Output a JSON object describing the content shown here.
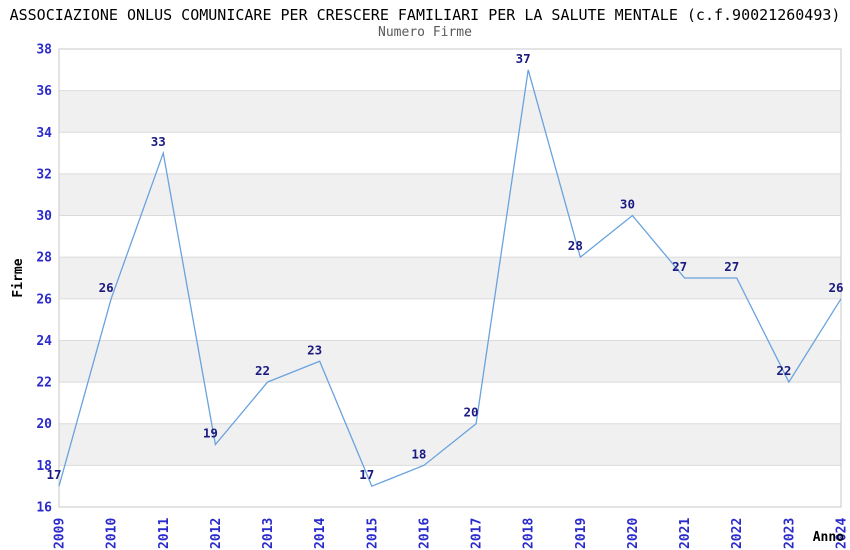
{
  "header": {
    "title": "ASSOCIAZIONE ONLUS COMUNICARE PER CRESCERE FAMILIARI PER LA SALUTE MENTALE (c.f.90021260493)"
  },
  "chart_data": {
    "type": "line",
    "title": "Numero Firme",
    "xlabel": "Anno",
    "ylabel": "Firme",
    "categories": [
      "2009",
      "2010",
      "2011",
      "2012",
      "2013",
      "2014",
      "2015",
      "2016",
      "2017",
      "2018",
      "2019",
      "2020",
      "2021",
      "2022",
      "2023",
      "2024"
    ],
    "series": [
      {
        "name": "Numero Firme",
        "values": [
          17,
          26,
          33,
          19,
          22,
          23,
          17,
          18,
          20,
          37,
          28,
          30,
          27,
          27,
          22,
          26
        ]
      }
    ],
    "ylim": [
      16,
      38
    ],
    "ytick_step": 2,
    "yticks": [
      16,
      18,
      20,
      22,
      24,
      26,
      28,
      30,
      32,
      34,
      36,
      38
    ],
    "grid": "horizontal-bands",
    "legend_position": "none",
    "data_labels_visible": true,
    "colors": {
      "line": "#69A3DE",
      "data_label": "#1A1A80",
      "tick_label": "#2B2BCC",
      "band_alt": "#F0F0F0",
      "band_base": "#FFFFFF",
      "gridline": "#DBDBDB",
      "plot_border": "#C9C9C9",
      "title": "#000000",
      "subtitle": "#5A5A5A",
      "axis_title": "#000000",
      "background": "#FFFFFF"
    }
  }
}
